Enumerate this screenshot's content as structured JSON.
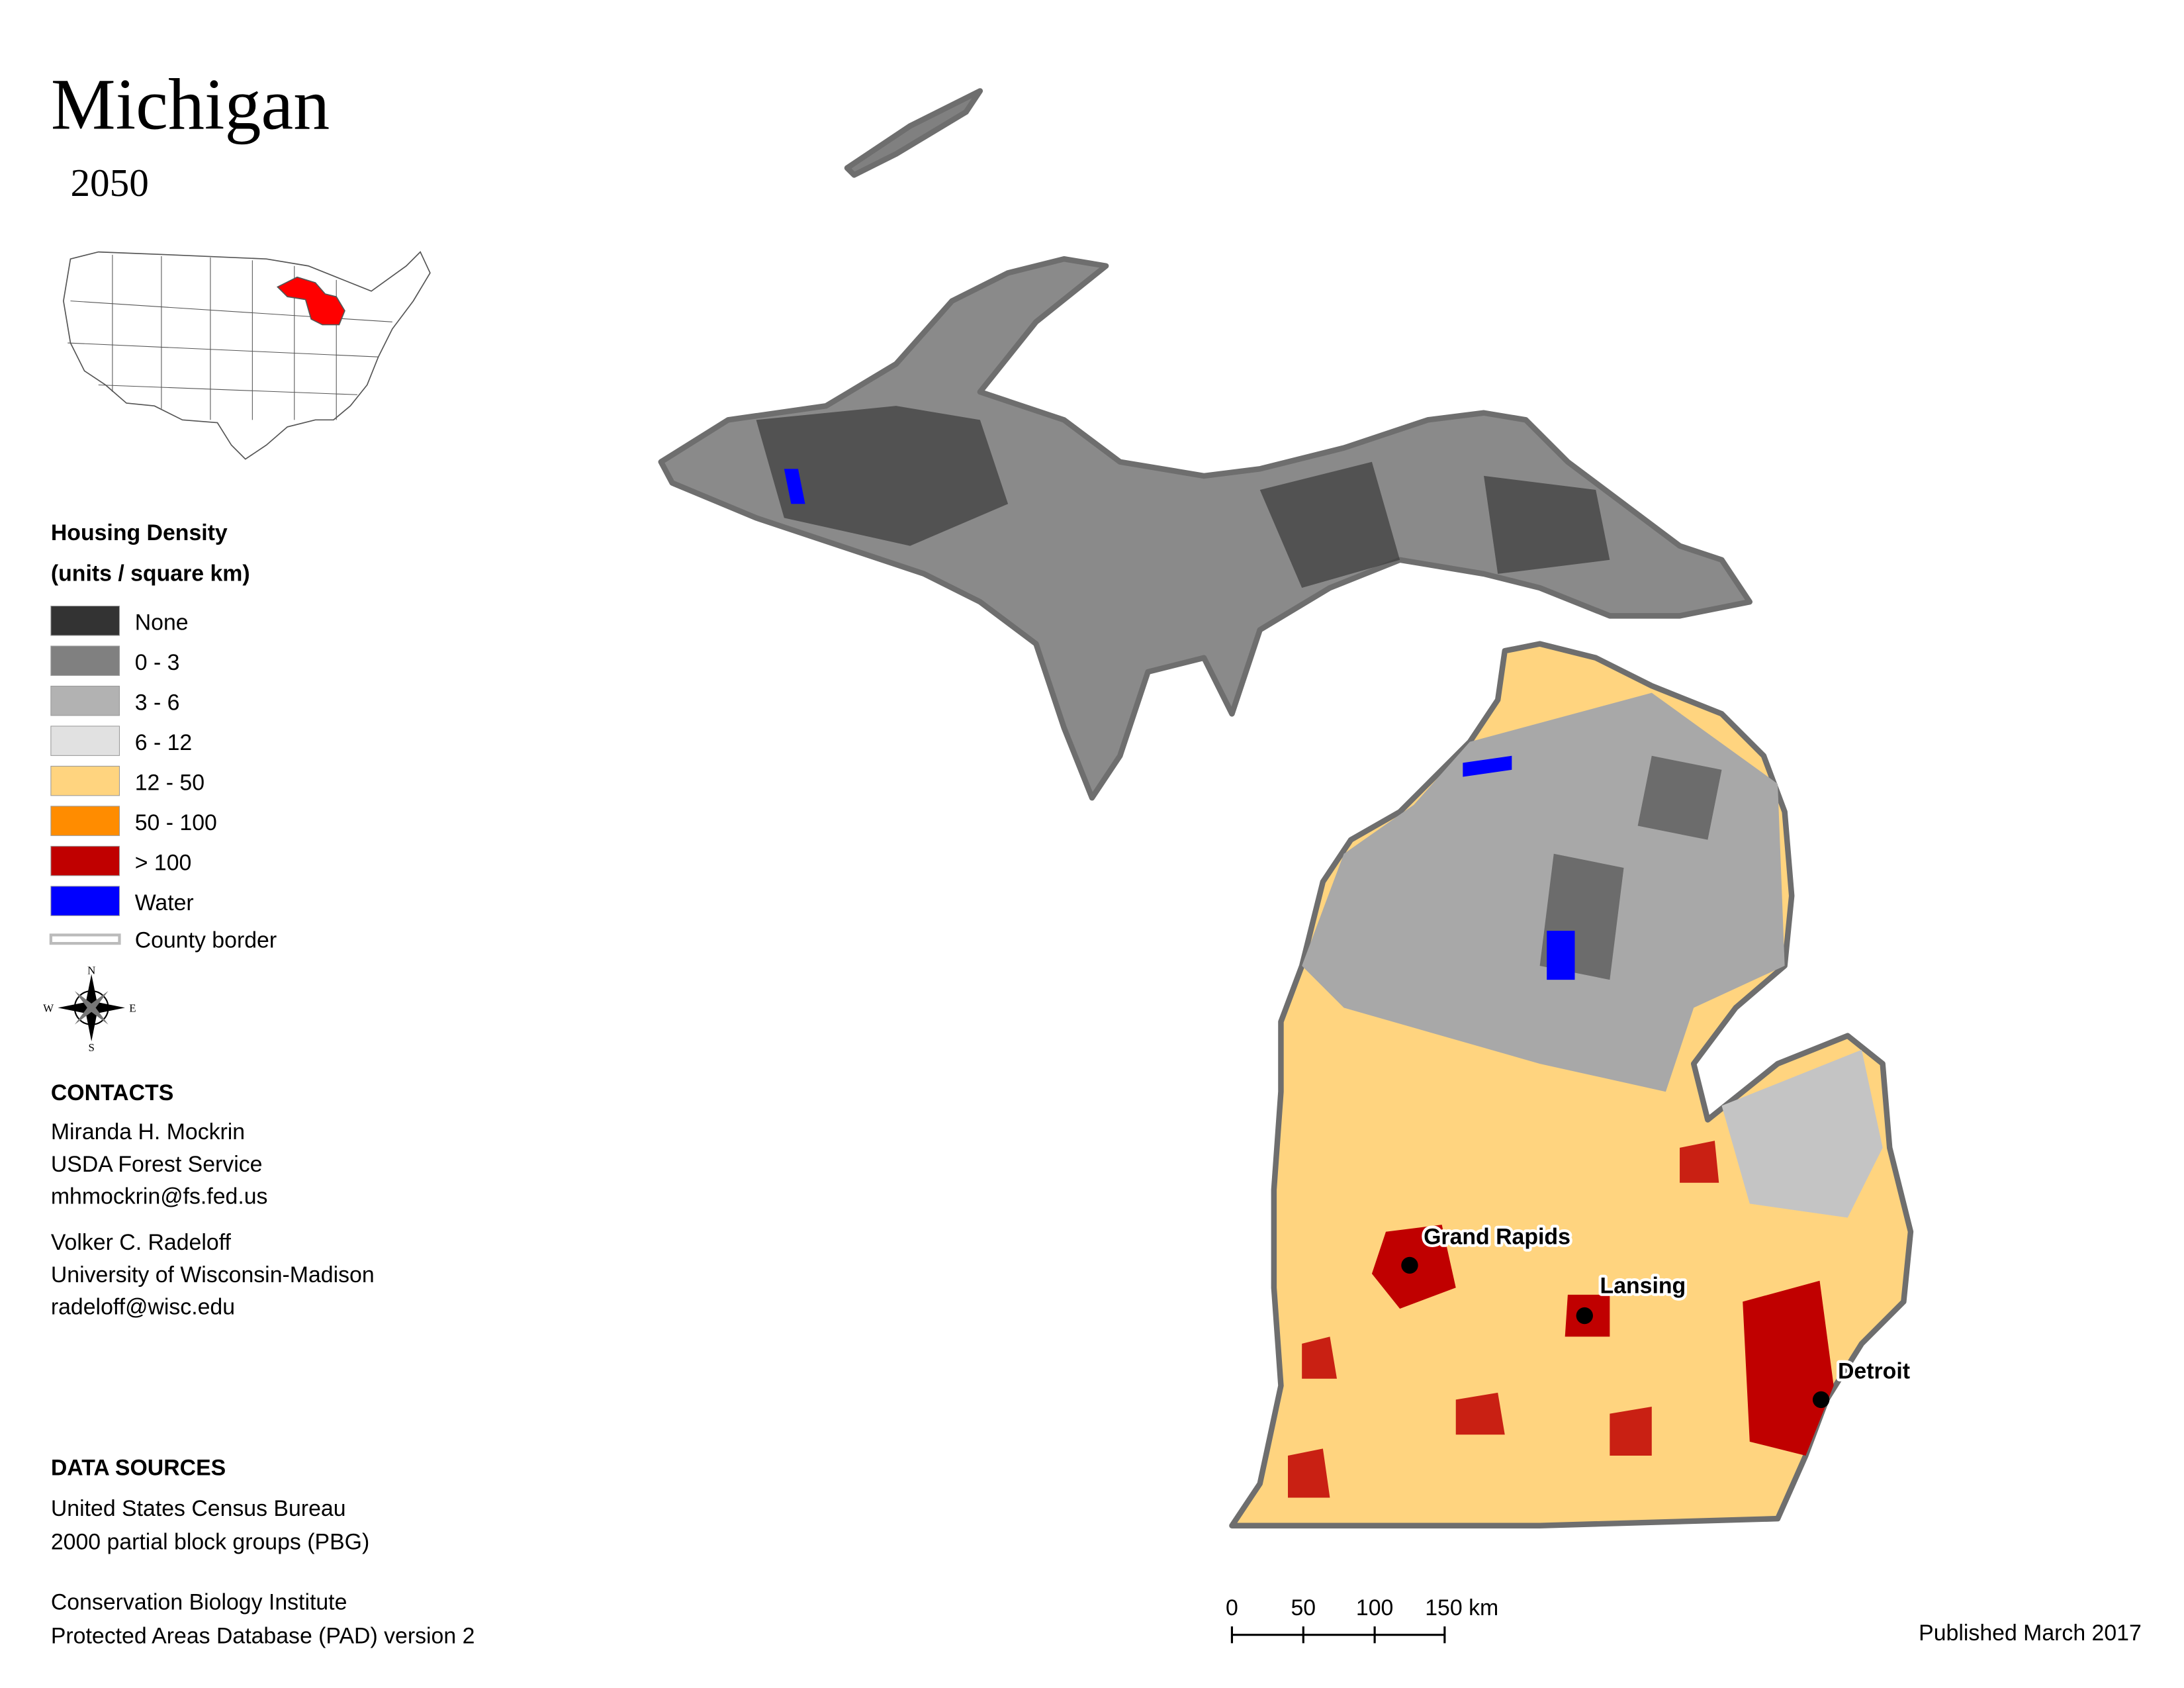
{
  "header": {
    "title": "Michigan",
    "year": "2050"
  },
  "legend": {
    "title": "Housing Density",
    "subtitle": "(units / square km)",
    "items": [
      {
        "label": "None",
        "color": "#333333"
      },
      {
        "label": "0 - 3",
        "color": "#808080"
      },
      {
        "label": "3 - 6",
        "color": "#b2b2b2"
      },
      {
        "label": "6 - 12",
        "color": "#e1e1e1"
      },
      {
        "label": "12 - 50",
        "color": "#ffd47f"
      },
      {
        "label": "50 - 100",
        "color": "#ff8c00"
      },
      {
        "label": "> 100",
        "color": "#c00000"
      },
      {
        "label": "Water",
        "color": "#0000ff"
      }
    ],
    "county_border": "County border"
  },
  "compass": {
    "n": "N",
    "e": "E",
    "s": "S",
    "w": "W"
  },
  "contacts": {
    "heading": "CONTACTS",
    "people": [
      [
        "Miranda H. Mockrin",
        "USDA Forest Service",
        "mhmockrin@fs.fed.us"
      ],
      [
        "Volker C. Radeloff",
        "University of Wisconsin-Madison",
        "radeloff@wisc.edu"
      ]
    ]
  },
  "data_sources": {
    "heading": "DATA SOURCES",
    "sources": [
      [
        "United States Census Bureau",
        "2000 partial block groups (PBG)"
      ],
      [
        "Conservation Biology Institute",
        "Protected Areas Database (PAD) version 2"
      ]
    ]
  },
  "cities": [
    "Grand Rapids",
    "Lansing",
    "Detroit"
  ],
  "scale_bar": [
    "0",
    "50",
    "100",
    "150 km"
  ],
  "published": "Published March 2017"
}
